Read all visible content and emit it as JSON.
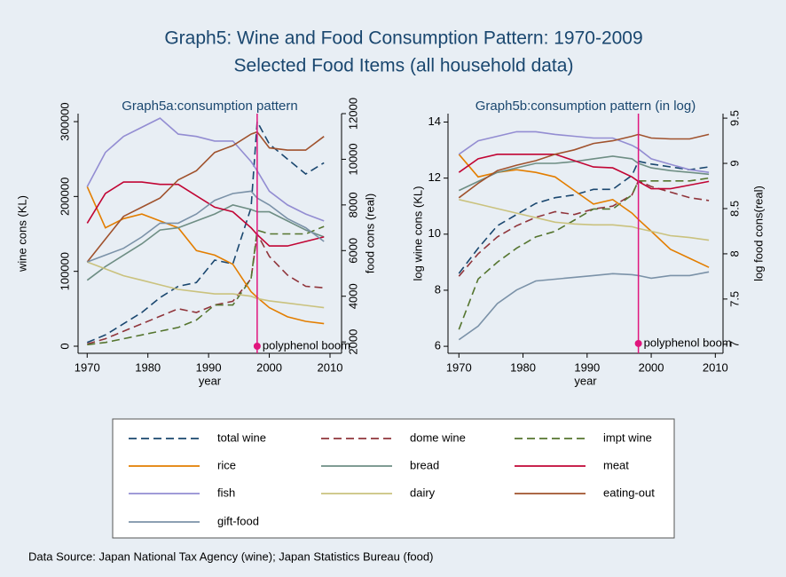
{
  "title": "Graph5: Wine and Food Consumption Pattern: 1970-2009",
  "subtitle": "Selected Food Items (all household data)",
  "source": "Data Source: Japan National Tax Agency (wine); Japan Statistics Bureau (food)",
  "chart_data": [
    {
      "type": "line",
      "title": "Graph5a:consumption pattern",
      "xlabel": "year",
      "ylabel": "wine cons (KL)",
      "y2label": "food cons (real)",
      "x": [
        1970,
        1973,
        1976,
        1979,
        1982,
        1985,
        1988,
        1991,
        1994,
        1997,
        1998,
        2000,
        2003,
        2006,
        2009
      ],
      "xlim": [
        1968.5,
        2011.9
      ],
      "xticks": [
        1970,
        1980,
        1990,
        2000,
        2010
      ],
      "ylim": [
        -9500,
        310700
      ],
      "yticks": [
        0,
        100000,
        200000,
        300000
      ],
      "ytick_rotate": true,
      "y2lim": [
        1500,
        12000
      ],
      "y2ticks": [
        2000,
        4000,
        6000,
        8000,
        10000,
        12000
      ],
      "annotation": {
        "text": "polyphenol boom",
        "x": 1998,
        "y": 0,
        "color": "#e0157d"
      },
      "series": [
        {
          "name": "total wine",
          "color": "#1a476f",
          "dash": true,
          "values": [
            5000,
            15000,
            30000,
            45000,
            65000,
            80000,
            85000,
            115000,
            110000,
            185000,
            300000,
            270000,
            250000,
            230000,
            245000
          ]
        },
        {
          "name": "dome wine",
          "color": "#90353b",
          "dash": true,
          "values": [
            3000,
            10000,
            20000,
            30000,
            40000,
            50000,
            45000,
            55000,
            60000,
            90000,
            150000,
            120000,
            95000,
            80000,
            78000
          ]
        },
        {
          "name": "impt wine",
          "color": "#55752f",
          "dash": true,
          "values": [
            2000,
            5000,
            10000,
            15000,
            20000,
            25000,
            35000,
            55000,
            55000,
            90000,
            155000,
            150000,
            150000,
            150000,
            160000
          ]
        },
        {
          "name": "rice",
          "color": "#e37e00",
          "axis": "y2",
          "values": [
            8800,
            7000,
            7400,
            7600,
            7300,
            7000,
            6000,
            5800,
            5400,
            4200,
            3950,
            3500,
            3100,
            2900,
            2800
          ]
        },
        {
          "name": "bread",
          "color": "#6e8e84",
          "axis": "y2",
          "values": [
            4700,
            5300,
            5800,
            6300,
            6900,
            7000,
            7300,
            7600,
            8000,
            7800,
            7700,
            7700,
            7300,
            6900,
            6600
          ]
        },
        {
          "name": "meat",
          "color": "#c10534",
          "axis": "y2",
          "values": [
            7200,
            8500,
            9000,
            9000,
            8900,
            8900,
            8400,
            7900,
            7700,
            7000,
            6700,
            6200,
            6200,
            6400,
            6600
          ]
        },
        {
          "name": "fish",
          "color": "#938dd2",
          "axis": "y2",
          "values": [
            8800,
            10300,
            11000,
            11400,
            11800,
            11100,
            11000,
            10800,
            10800,
            9900,
            9500,
            8600,
            8000,
            7600,
            7300
          ]
        },
        {
          "name": "dairy",
          "color": "#cac27e",
          "axis": "y2",
          "values": [
            5500,
            5200,
            4900,
            4700,
            4500,
            4300,
            4200,
            4100,
            4100,
            4000,
            3900,
            3800,
            3700,
            3600,
            3500
          ]
        },
        {
          "name": "eating-out",
          "color": "#a0522d",
          "axis": "y2",
          "values": [
            5500,
            6500,
            7500,
            7900,
            8300,
            9100,
            9500,
            10300,
            10600,
            11100,
            11200,
            10500,
            10400,
            10400,
            11000
          ]
        },
        {
          "name": "gift-food",
          "color": "#7b92a8",
          "axis": "y2",
          "values": [
            5500,
            5800,
            6100,
            6600,
            7200,
            7200,
            7600,
            8200,
            8500,
            8600,
            8300,
            8000,
            7400,
            7000,
            6400
          ]
        }
      ]
    },
    {
      "type": "line",
      "title": "Graph5b:consumption pattern (in log)",
      "xlabel": "year",
      "ylabel": "log wine cons (KL)",
      "y2label": "log food cons(real)",
      "x": [
        1970,
        1973,
        1976,
        1979,
        1982,
        1985,
        1988,
        1991,
        1994,
        1997,
        1998,
        2000,
        2003,
        2006,
        2009
      ],
      "xlim": [
        1968.3,
        2011.2
      ],
      "xticks": [
        1970,
        1980,
        1990,
        2000,
        2010
      ],
      "ylim": [
        5.75,
        14.3
      ],
      "yticks": [
        6,
        8,
        10,
        12,
        14
      ],
      "ytick_rotate": false,
      "y2lim": [
        6.9,
        9.55
      ],
      "y2ticks": [
        7,
        7.5,
        8,
        8.5,
        9,
        9.5
      ],
      "annotation": {
        "text": "polyphenol boom",
        "x": 1998,
        "y": 6.1,
        "color": "#e0157d"
      },
      "series": [
        {
          "name": "total wine",
          "color": "#1a476f",
          "dash": true,
          "values": [
            8.6,
            9.5,
            10.3,
            10.7,
            11.1,
            11.3,
            11.4,
            11.6,
            11.6,
            12.1,
            12.6,
            12.5,
            12.4,
            12.3,
            12.4
          ]
        },
        {
          "name": "dome wine",
          "color": "#90353b",
          "dash": true,
          "values": [
            8.5,
            9.3,
            9.9,
            10.3,
            10.6,
            10.8,
            10.7,
            10.9,
            11.0,
            11.4,
            11.9,
            11.7,
            11.5,
            11.3,
            11.2
          ]
        },
        {
          "name": "impt wine",
          "color": "#55752f",
          "dash": true,
          "values": [
            6.6,
            8.4,
            9.0,
            9.5,
            9.9,
            10.1,
            10.5,
            10.9,
            10.9,
            11.4,
            11.9,
            11.9,
            11.9,
            11.9,
            12.0
          ]
        },
        {
          "name": "rice",
          "color": "#e37e00",
          "axis": "y2",
          "values": [
            9.1,
            8.85,
            8.9,
            8.93,
            8.9,
            8.85,
            8.7,
            8.55,
            8.6,
            8.45,
            8.38,
            8.25,
            8.05,
            7.95,
            7.85
          ]
        },
        {
          "name": "bread",
          "color": "#6e8e84",
          "axis": "y2",
          "values": [
            8.7,
            8.8,
            8.9,
            8.95,
            9.0,
            9.0,
            9.02,
            9.05,
            9.08,
            9.05,
            9.0,
            8.95,
            8.92,
            8.9,
            8.88
          ]
        },
        {
          "name": "meat",
          "color": "#c10534",
          "axis": "y2",
          "values": [
            8.9,
            9.05,
            9.1,
            9.1,
            9.1,
            9.1,
            9.03,
            8.96,
            8.95,
            8.85,
            8.8,
            8.72,
            8.72,
            8.76,
            8.8
          ]
        },
        {
          "name": "fish",
          "color": "#938dd2",
          "axis": "y2",
          "values": [
            9.1,
            9.25,
            9.3,
            9.35,
            9.35,
            9.32,
            9.3,
            9.28,
            9.28,
            9.2,
            9.16,
            9.05,
            8.99,
            8.93,
            8.9
          ]
        },
        {
          "name": "dairy",
          "color": "#cac27e",
          "axis": "y2",
          "values": [
            8.6,
            8.55,
            8.5,
            8.45,
            8.4,
            8.35,
            8.33,
            8.32,
            8.32,
            8.3,
            8.28,
            8.25,
            8.2,
            8.18,
            8.15
          ]
        },
        {
          "name": "eating-out",
          "color": "#a0522d",
          "axis": "y2",
          "values": [
            8.62,
            8.78,
            8.92,
            8.98,
            9.03,
            9.1,
            9.15,
            9.22,
            9.25,
            9.3,
            9.32,
            9.28,
            9.27,
            9.27,
            9.32
          ]
        },
        {
          "name": "gift-food",
          "color": "#7b92a8",
          "axis": "y2",
          "values": [
            7.05,
            7.2,
            7.45,
            7.6,
            7.7,
            7.72,
            7.74,
            7.76,
            7.78,
            7.77,
            7.76,
            7.73,
            7.76,
            7.76,
            7.8
          ]
        }
      ]
    }
  ]
}
